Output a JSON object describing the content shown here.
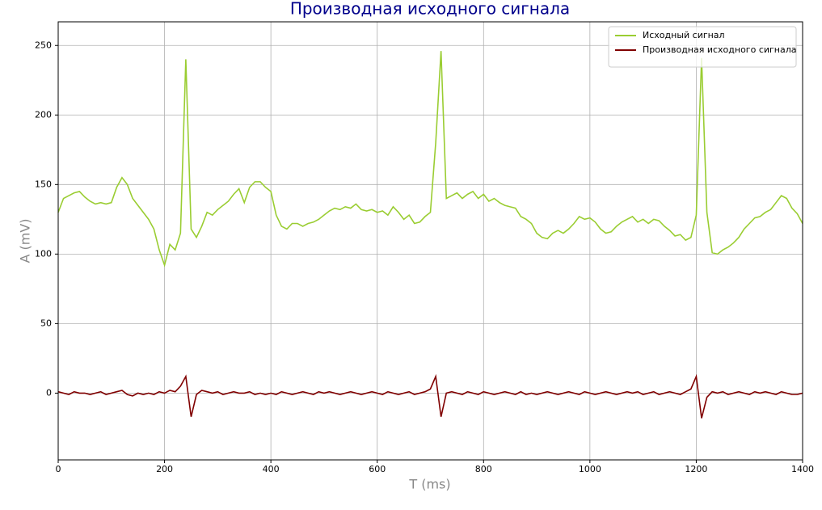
{
  "chart_data": {
    "type": "line",
    "title": "Производная исходного сигнала",
    "xlabel": "T (ms)",
    "ylabel": "A (mV)",
    "x": [
      0,
      10,
      20,
      30,
      40,
      50,
      60,
      70,
      80,
      90,
      100,
      110,
      120,
      130,
      140,
      150,
      160,
      170,
      180,
      190,
      200,
      210,
      220,
      230,
      240,
      250,
      260,
      270,
      280,
      290,
      300,
      310,
      320,
      330,
      340,
      350,
      360,
      370,
      380,
      390,
      400,
      410,
      420,
      430,
      440,
      450,
      460,
      470,
      480,
      490,
      500,
      510,
      520,
      530,
      540,
      550,
      560,
      570,
      580,
      590,
      600,
      610,
      620,
      630,
      640,
      650,
      660,
      670,
      680,
      690,
      700,
      710,
      720,
      730,
      740,
      750,
      760,
      770,
      780,
      790,
      800,
      810,
      820,
      830,
      840,
      850,
      860,
      870,
      880,
      890,
      900,
      910,
      920,
      930,
      940,
      950,
      960,
      970,
      980,
      990,
      1000,
      1010,
      1020,
      1030,
      1040,
      1050,
      1060,
      1070,
      1080,
      1090,
      1100,
      1110,
      1120,
      1130,
      1140,
      1150,
      1160,
      1170,
      1180,
      1190,
      1200,
      1210,
      1220,
      1230,
      1240,
      1250,
      1260,
      1270,
      1280,
      1290,
      1300,
      1310,
      1320,
      1330,
      1340,
      1350,
      1360,
      1370,
      1380,
      1390,
      1400
    ],
    "series": [
      {
        "name": "Исходный сигнал",
        "color": "#9acd32",
        "values": [
          130,
          140,
          142,
          144,
          145,
          141,
          138,
          136,
          137,
          136,
          137,
          148,
          155,
          150,
          140,
          135,
          130,
          125,
          118,
          103,
          92,
          107,
          103,
          115,
          240,
          118,
          112,
          120,
          130,
          128,
          132,
          135,
          138,
          143,
          147,
          137,
          148,
          152,
          152,
          148,
          145,
          128,
          120,
          118,
          122,
          122,
          120,
          122,
          123,
          125,
          128,
          131,
          133,
          132,
          134,
          133,
          136,
          132,
          131,
          132,
          130,
          131,
          128,
          134,
          130,
          125,
          128,
          122,
          123,
          127,
          130,
          180,
          246,
          140,
          142,
          144,
          140,
          143,
          145,
          140,
          143,
          138,
          140,
          137,
          135,
          134,
          133,
          127,
          125,
          122,
          115,
          112,
          111,
          115,
          117,
          115,
          118,
          122,
          127,
          125,
          126,
          123,
          118,
          115,
          116,
          120,
          123,
          125,
          127,
          123,
          125,
          122,
          125,
          124,
          120,
          117,
          113,
          114,
          110,
          112,
          128,
          241,
          130,
          101,
          100,
          103,
          105,
          108,
          112,
          118,
          122,
          126,
          127,
          130,
          132,
          137,
          142,
          140,
          133,
          129,
          122
        ]
      },
      {
        "name": "Производная исходного сигнала",
        "color": "#800000",
        "values": [
          1,
          0,
          -1,
          1,
          0,
          0,
          -1,
          0,
          1,
          -1,
          0,
          1,
          2,
          -1,
          -2,
          0,
          -1,
          0,
          -1,
          1,
          0,
          2,
          1,
          5,
          12,
          -17,
          -1,
          2,
          1,
          0,
          1,
          -1,
          0,
          1,
          0,
          0,
          1,
          -1,
          0,
          -1,
          0,
          -1,
          1,
          0,
          -1,
          0,
          1,
          0,
          -1,
          1,
          0,
          1,
          0,
          -1,
          0,
          1,
          0,
          -1,
          0,
          1,
          0,
          -1,
          1,
          0,
          -1,
          0,
          1,
          -1,
          0,
          1,
          3,
          12,
          -17,
          0,
          1,
          0,
          -1,
          1,
          0,
          -1,
          1,
          0,
          -1,
          0,
          1,
          0,
          -1,
          1,
          -1,
          0,
          -1,
          0,
          1,
          0,
          -1,
          0,
          1,
          0,
          -1,
          1,
          0,
          -1,
          0,
          1,
          0,
          -1,
          0,
          1,
          0,
          1,
          -1,
          0,
          1,
          -1,
          0,
          1,
          0,
          -1,
          1,
          3,
          12,
          -18,
          -3,
          1,
          0,
          1,
          -1,
          0,
          1,
          0,
          -1,
          1,
          0,
          1,
          0,
          -1,
          1,
          0,
          -1,
          -1,
          0
        ]
      }
    ],
    "xlim": [
      0,
      1400
    ],
    "xticks": [
      0,
      200,
      400,
      600,
      800,
      1000,
      1200,
      1400
    ],
    "ylim": [
      -48,
      267
    ],
    "yticks": [
      0,
      50,
      100,
      150,
      200,
      250
    ],
    "grid": true,
    "legend": "upper right"
  }
}
